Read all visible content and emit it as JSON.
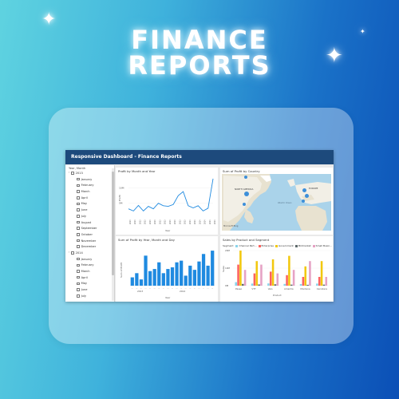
{
  "hero": {
    "title_line1": "FINANCE",
    "title_line2": "REPORTS"
  },
  "dashboard": {
    "header_title": "Responsive Dashboard - Finance Reports",
    "slicer": {
      "title": "Year, Month",
      "years": [
        {
          "label": "2013",
          "months": [
            "January",
            "February",
            "March",
            "April",
            "May",
            "June",
            "July",
            "August",
            "September",
            "October",
            "November",
            "December"
          ]
        },
        {
          "label": "2014",
          "months": [
            "January",
            "February",
            "March",
            "April",
            "May",
            "June",
            "July"
          ]
        }
      ]
    },
    "profit_month_year": {
      "title": "Profit by Month and Year",
      "ylabel": "Profit",
      "xlabel": "Year",
      "yticks": [
        "10M",
        "5M"
      ]
    },
    "profit_country": {
      "title": "Sum of Profit by Country",
      "labels": {
        "north_america": "NORTH AMERICA",
        "europe": "EUROPE",
        "atlantic": "Atlantic Ocean"
      },
      "attribution": "Microsoft Bing"
    },
    "profit_day": {
      "title": "Sum of Profit by Year, Month and Day",
      "ylabel": "Sum of Profit",
      "xlabel": "Year",
      "years": [
        "2013",
        "2014"
      ]
    },
    "sales_segment": {
      "title": "Sales by Product and Segment",
      "legend_label": "Segment",
      "segments": [
        "Channel Part...",
        "Enterprise",
        "Government",
        "Midmarket",
        "Small Busin..."
      ],
      "segment_colors": [
        "#8ad4eb",
        "#fd625e",
        "#f2c80f",
        "#5f6b6d",
        "#e6a2c4"
      ],
      "yticks": [
        "20M",
        "10M",
        "0M"
      ],
      "ylabel": "Sales",
      "products": [
        "Paseo",
        "VTT",
        "Velo",
        "Amarilla",
        "Montana",
        "Carretera"
      ],
      "xlabel": "Product"
    },
    "chart_data": [
      {
        "type": "line",
        "title": "Profit by Month and Year",
        "xlabel": "Year",
        "ylabel": "Profit",
        "y_tick_labels": [
          "10M",
          "5M"
        ],
        "series": [
          {
            "values": [
              3.2,
              2.5,
              4.3,
              2.5,
              4.0,
              3.2,
              5.0,
              4.2,
              4.0,
              4.6,
              7.5,
              8.8,
              4.2,
              3.5,
              4.2,
              2.5,
              3.4,
              13.0
            ]
          }
        ]
      },
      {
        "type": "bar",
        "title": "Sum of Profit by Year, Month and Day",
        "xlabel": "Year",
        "ylabel": "Sum of Profit",
        "categories_group": [
          "2013",
          "2014"
        ],
        "values": [
          1.0,
          1.5,
          0.75,
          3.6,
          1.75,
          2.0,
          2.8,
          1.5,
          2.0,
          2.2,
          2.8,
          3.0,
          1.2,
          2.4,
          1.9,
          2.9,
          3.8,
          2.4,
          4.2
        ]
      },
      {
        "type": "bar",
        "title": "Sales by Product and Segment",
        "xlabel": "Product",
        "ylabel": "Sales",
        "categories": [
          "Paseo",
          "VTT",
          "Velo",
          "Amarilla",
          "Montana",
          "Carretera"
        ],
        "series": [
          {
            "name": "Channel Part...",
            "values": [
              2,
              1.2,
              1.3,
              1.0,
              0.9,
              1.2
            ]
          },
          {
            "name": "Enterprise",
            "values": [
              12,
              7,
              8,
              6,
              5,
              5
            ]
          },
          {
            "name": "Government",
            "values": [
              20,
              14,
              15,
              17,
              11,
              14
            ]
          },
          {
            "name": "Midmarket",
            "values": [
              1,
              0.7,
              0.8,
              0.6,
              0.5,
              0.6
            ]
          },
          {
            "name": "Small Busin...",
            "values": [
              9,
              12,
              7,
              9,
              14,
              5
            ]
          }
        ],
        "ylim": [
          0,
          20
        ]
      }
    ]
  }
}
